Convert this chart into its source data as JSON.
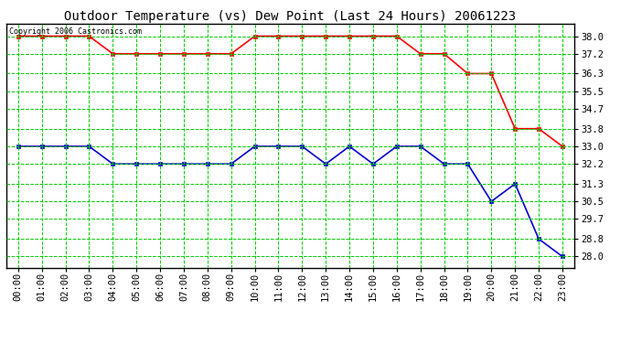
{
  "title": "Outdoor Temperature (vs) Dew Point (Last 24 Hours) 20061223",
  "copyright": "Copyright 2006 Castronics.com",
  "hours": [
    0,
    1,
    2,
    3,
    4,
    5,
    6,
    7,
    8,
    9,
    10,
    11,
    12,
    13,
    14,
    15,
    16,
    17,
    18,
    19,
    20,
    21,
    22,
    23
  ],
  "hour_labels": [
    "00:00",
    "01:00",
    "02:00",
    "03:00",
    "04:00",
    "05:00",
    "06:00",
    "07:00",
    "08:00",
    "09:00",
    "10:00",
    "11:00",
    "12:00",
    "13:00",
    "14:00",
    "15:00",
    "16:00",
    "17:00",
    "18:00",
    "19:00",
    "20:00",
    "21:00",
    "22:00",
    "23:00"
  ],
  "temp": [
    38.0,
    38.0,
    38.0,
    38.0,
    37.2,
    37.2,
    37.2,
    37.2,
    37.2,
    37.2,
    38.0,
    38.0,
    38.0,
    38.0,
    38.0,
    38.0,
    38.0,
    37.2,
    37.2,
    36.3,
    36.3,
    33.8,
    33.8,
    33.0
  ],
  "dewpoint": [
    33.0,
    33.0,
    33.0,
    33.0,
    32.2,
    32.2,
    32.2,
    32.2,
    32.2,
    32.2,
    33.0,
    33.0,
    33.0,
    32.2,
    33.0,
    32.2,
    33.0,
    33.0,
    32.2,
    32.2,
    30.5,
    31.3,
    28.8,
    28.0
  ],
  "temp_color": "#ff0000",
  "dew_color": "#0000cc",
  "marker": "s",
  "bg_color": "#ffffff",
  "grid_color": "#00cc00",
  "ylim_min": 27.5,
  "ylim_max": 38.55,
  "yticks": [
    38.0,
    37.2,
    36.3,
    35.5,
    34.7,
    33.8,
    33.0,
    32.2,
    31.3,
    30.5,
    29.7,
    28.8,
    28.0
  ],
  "title_fontsize": 10,
  "copyright_fontsize": 6,
  "tick_fontsize": 7.5,
  "linewidth": 1.2,
  "markersize": 3
}
